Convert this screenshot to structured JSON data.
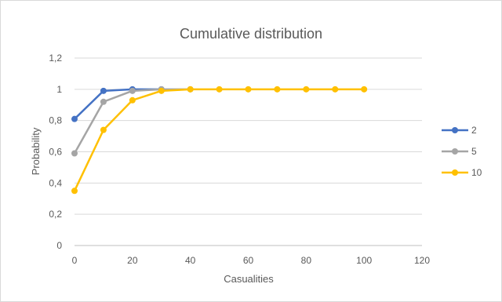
{
  "chart_data": {
    "type": "line",
    "title": "Cumulative distribution",
    "xlabel": "Casualities",
    "ylabel": "Probability",
    "xlim": [
      0,
      120
    ],
    "ylim": [
      0,
      1.2
    ],
    "x_ticks": [
      "0",
      "20",
      "40",
      "60",
      "80",
      "100",
      "120"
    ],
    "y_ticks": [
      "0",
      "0,2",
      "0,4",
      "0,6",
      "0,8",
      "1",
      "1,2"
    ],
    "grid": true,
    "legend_position": "right",
    "series": [
      {
        "name": "2",
        "color": "#4472c4",
        "x": [
          0,
          10,
          20,
          30
        ],
        "y": [
          0.81,
          0.99,
          1.0,
          1.0
        ]
      },
      {
        "name": "5",
        "color": "#a5a5a5",
        "x": [
          0,
          10,
          20,
          30,
          40
        ],
        "y": [
          0.59,
          0.92,
          0.99,
          1.0,
          1.0
        ]
      },
      {
        "name": "10",
        "color": "#ffc000",
        "x": [
          0,
          10,
          20,
          30,
          40,
          50,
          60,
          70,
          80,
          90,
          100
        ],
        "y": [
          0.35,
          0.74,
          0.93,
          0.99,
          1.0,
          1.0,
          1.0,
          1.0,
          1.0,
          1.0,
          1.0
        ]
      }
    ]
  }
}
